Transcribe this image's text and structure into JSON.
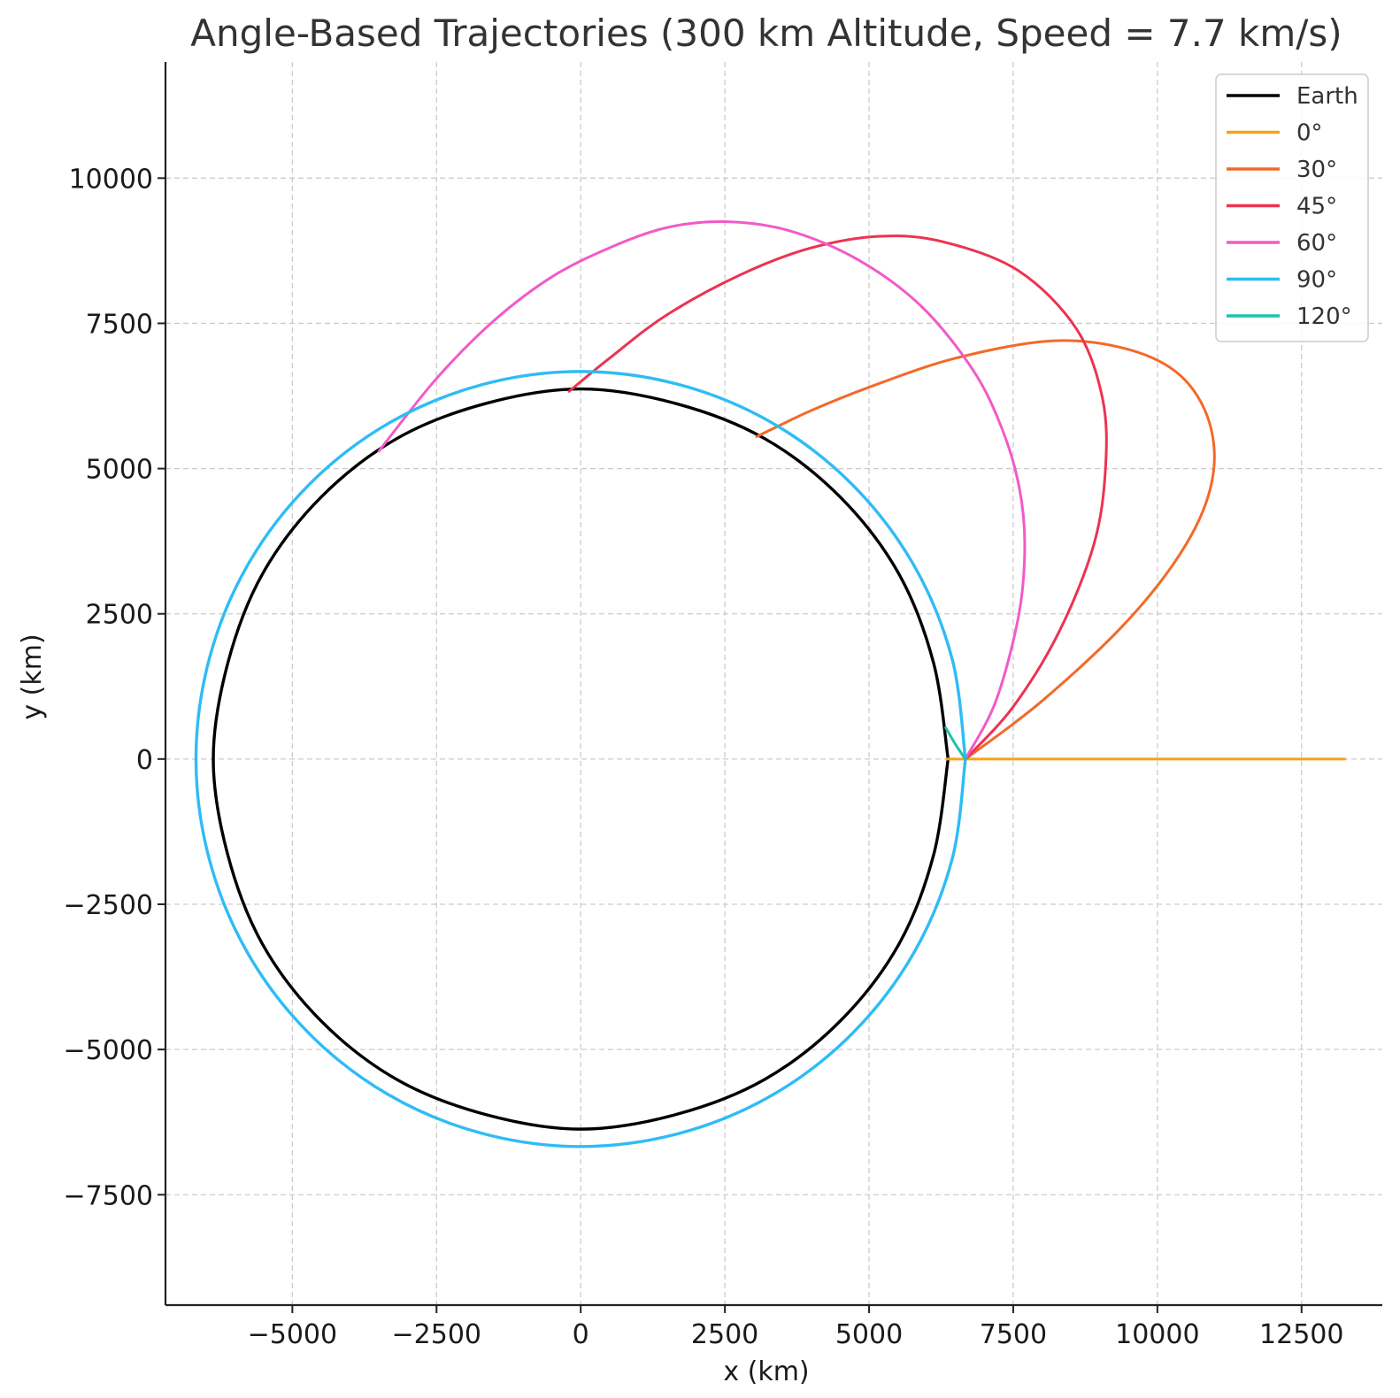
{
  "chart_data": {
    "type": "line",
    "title": "Angle-Based Trajectories (300 km Altitude, Speed = 7.7 km/s)",
    "xlabel": "x (km)",
    "ylabel": "y (km)",
    "xlim": [
      -7200,
      13900
    ],
    "ylim": [
      -9400,
      12000
    ],
    "xticks": [
      -5000,
      -2500,
      0,
      2500,
      5000,
      7500,
      10000,
      12500
    ],
    "yticks": [
      -7500,
      -5000,
      -2500,
      0,
      2500,
      5000,
      7500,
      10000
    ],
    "xtick_labels": [
      "−5000",
      "−2500",
      "0",
      "2500",
      "5000",
      "7500",
      "10000",
      "12500"
    ],
    "ytick_labels": [
      "−7500",
      "−5000",
      "−2500",
      "0",
      "2500",
      "5000",
      "7500",
      "10000"
    ],
    "grid": true,
    "legend_position": "top-right",
    "series": [
      {
        "name": "Earth",
        "color": "#000000",
        "x": [
          6371,
          6120,
          5518,
          4505,
          3186,
          1649,
          0,
          -1649,
          -3186,
          -4505,
          -5518,
          -6120,
          -6371,
          -6120,
          -5518,
          -4505,
          -3186,
          -1649,
          0,
          1649,
          3186,
          4505,
          5518,
          6120,
          6371
        ],
        "y": [
          0,
          1649,
          3186,
          4505,
          5518,
          6120,
          6371,
          6120,
          5518,
          4505,
          3186,
          1649,
          0,
          -1649,
          -3186,
          -4505,
          -5518,
          -6120,
          -6371,
          -6120,
          -5518,
          -4505,
          -3186,
          -1649,
          0
        ]
      },
      {
        "name": "0°",
        "color": "#f5a31a",
        "x": [
          6350,
          6671,
          13250
        ],
        "y": [
          0,
          0,
          0
        ]
      },
      {
        "name": "30°",
        "color": "#f26a2a",
        "x": [
          6671,
          8000,
          9500,
          10500,
          10950,
          10900,
          10400,
          9500,
          8200,
          6500,
          5000,
          4000,
          3050
        ],
        "y": [
          0,
          1000,
          2400,
          3700,
          4800,
          5800,
          6600,
          7050,
          7200,
          6900,
          6400,
          6000,
          5550
        ]
      },
      {
        "name": "45°",
        "color": "#eb3451",
        "x": [
          6671,
          7500,
          8300,
          8900,
          9100,
          9050,
          8600,
          7600,
          6300,
          5200,
          4000,
          2800,
          1500,
          500,
          -200
        ],
        "y": [
          0,
          900,
          2200,
          3700,
          5000,
          6200,
          7400,
          8400,
          8900,
          9000,
          8800,
          8350,
          7650,
          6900,
          6330
        ]
      },
      {
        "name": "60°",
        "color": "#f25ac8",
        "x": [
          6671,
          7200,
          7600,
          7700,
          7600,
          7300,
          6800,
          5900,
          4800,
          3600,
          2500,
          1500,
          500,
          -500,
          -1500,
          -2500,
          -3500
        ],
        "y": [
          0,
          1000,
          2500,
          3700,
          4700,
          5700,
          6700,
          7800,
          8600,
          9100,
          9250,
          9150,
          8800,
          8300,
          7550,
          6550,
          5300
        ]
      },
      {
        "name": "90°",
        "color": "#2ebcf5",
        "x": [
          6671,
          6440,
          5777,
          4717,
          3336,
          1727,
          0,
          -1727,
          -3336,
          -4717,
          -5777,
          -6440,
          -6671,
          -6440,
          -5777,
          -4717,
          -3336,
          -1727,
          0,
          1727,
          3336,
          4717,
          5777,
          6440,
          6671
        ],
        "y": [
          0,
          1727,
          3336,
          4717,
          5777,
          6440,
          6671,
          6440,
          5777,
          4717,
          3336,
          1727,
          0,
          -1727,
          -3336,
          -4717,
          -5777,
          -6440,
          -6671,
          -6440,
          -5777,
          -4717,
          -3336,
          -1727,
          0
        ]
      },
      {
        "name": "120°",
        "color": "#1ac4a8",
        "x": [
          6671,
          6500,
          6330
        ],
        "y": [
          0,
          250,
          540
        ]
      }
    ]
  }
}
